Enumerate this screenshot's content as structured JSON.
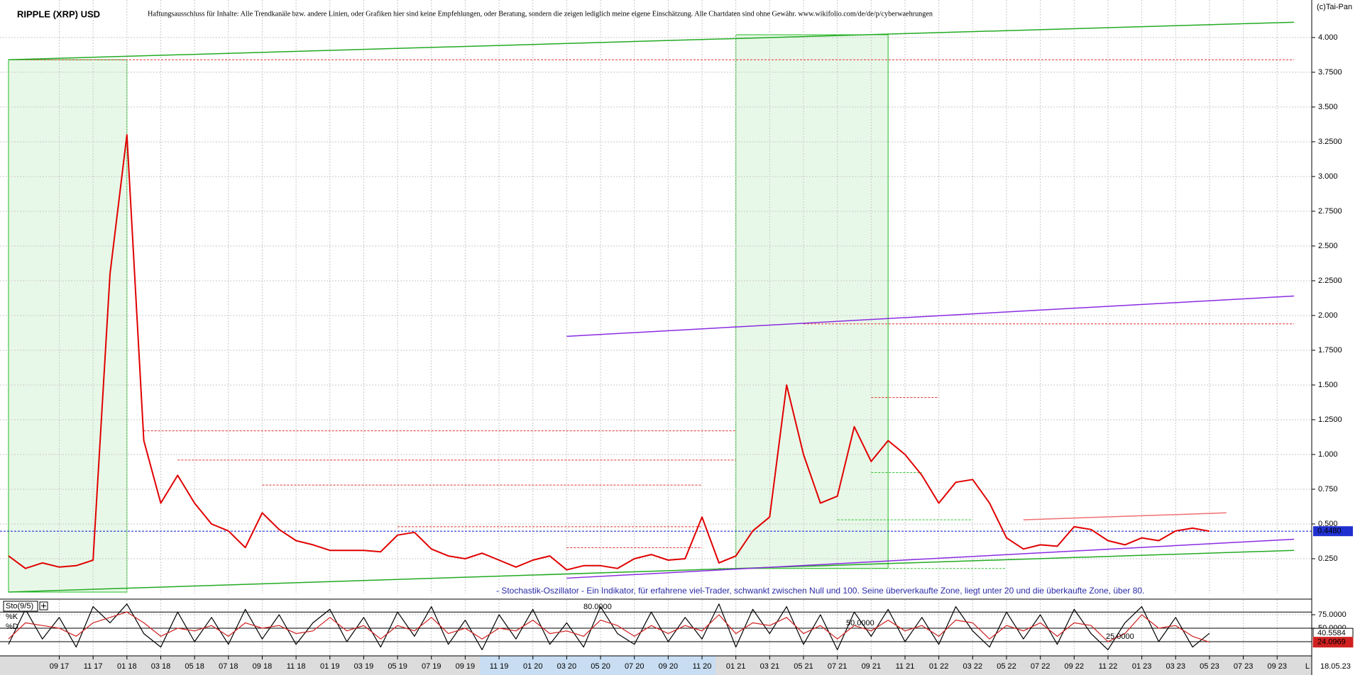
{
  "chart_data": [
    {
      "type": "line",
      "title": "RIPPLE (XRP) USD",
      "subtitle": "Haftungsausschluss für Inhalte: Alle Trendkanäle bzw. andere Linien, oder Grafiken hier sind keine Empfehlungen, oder Beratung, sondern die zeigen lediglich meine eigene Einschätzung. Alle Chartdaten sind ohne Gewähr.  www.wikifolio.com/de/de/p/cyberwaehrungen",
      "source": "(c)Tai-Pan",
      "date_label": "18.05.23",
      "scale_mode": "L",
      "x": [
        "06 17",
        "07 17",
        "08 17",
        "09 17",
        "10 17",
        "11 17",
        "12 17",
        "01 18",
        "02 18",
        "03 18",
        "04 18",
        "05 18",
        "06 18",
        "07 18",
        "08 18",
        "09 18",
        "10 18",
        "11 18",
        "12 18",
        "01 19",
        "02 19",
        "03 19",
        "04 19",
        "05 19",
        "06 19",
        "07 19",
        "08 19",
        "09 19",
        "10 19",
        "11 19",
        "12 19",
        "01 20",
        "02 20",
        "03 20",
        "04 20",
        "05 20",
        "06 20",
        "07 20",
        "08 20",
        "09 20",
        "10 20",
        "11 20",
        "12 20",
        "01 21",
        "02 21",
        "03 21",
        "04 21",
        "05 21",
        "06 21",
        "07 21",
        "08 21",
        "09 21",
        "10 21",
        "11 21",
        "12 21",
        "01 22",
        "02 22",
        "03 22",
        "04 22",
        "05 22",
        "06 22",
        "07 22",
        "08 22",
        "09 22",
        "10 22",
        "11 22",
        "12 22",
        "01 23",
        "02 23",
        "03 23",
        "04 23",
        "05 23",
        "06 23",
        "07 23",
        "08 23",
        "09 23",
        "10 23"
      ],
      "values": [
        0.27,
        0.18,
        0.22,
        0.19,
        0.2,
        0.24,
        2.3,
        3.3,
        1.1,
        0.65,
        0.85,
        0.65,
        0.5,
        0.45,
        0.33,
        0.58,
        0.46,
        0.38,
        0.35,
        0.31,
        0.31,
        0.31,
        0.3,
        0.42,
        0.44,
        0.32,
        0.27,
        0.25,
        0.29,
        0.24,
        0.19,
        0.24,
        0.27,
        0.17,
        0.2,
        0.2,
        0.18,
        0.25,
        0.28,
        0.24,
        0.25,
        0.55,
        0.22,
        0.27,
        0.45,
        0.55,
        1.5,
        1.0,
        0.65,
        0.7,
        1.2,
        0.95,
        1.1,
        1.0,
        0.85,
        0.65,
        0.8,
        0.82,
        0.65,
        0.4,
        0.32,
        0.35,
        0.34,
        0.48,
        0.46,
        0.38,
        0.35,
        0.4,
        0.38,
        0.45,
        0.47,
        0.448,
        null,
        null,
        null,
        null,
        null
      ],
      "color": "#e00000",
      "current": {
        "value": 0.448,
        "label": "0.4480",
        "color": "#2030d0"
      },
      "ylim": [
        0,
        4.27
      ],
      "yticks": [
        {
          "value": 0.25,
          "label": "0.250"
        },
        {
          "value": 0.5,
          "label": "0.500"
        },
        {
          "value": 0.75,
          "label": "0.750"
        },
        {
          "value": 1,
          "label": "1.000"
        },
        {
          "value": 1.25,
          "label": "1.2500"
        },
        {
          "value": 1.5,
          "label": "1.500"
        },
        {
          "value": 1.75,
          "label": "1.7500"
        },
        {
          "value": 2,
          "label": "2.000"
        },
        {
          "value": 2.25,
          "label": "2.2500"
        },
        {
          "value": 2.5,
          "label": "2.500"
        },
        {
          "value": 2.75,
          "label": "2.7500"
        },
        {
          "value": 3,
          "label": "3.000"
        },
        {
          "value": 3.25,
          "label": "3.2500"
        },
        {
          "value": 3.5,
          "label": "3.500"
        },
        {
          "value": 3.75,
          "label": "3.7500"
        },
        {
          "value": 4,
          "label": "4.000"
        }
      ],
      "xticks": [
        "09 17",
        "11 17",
        "01 18",
        "03 18",
        "05 18",
        "07 18",
        "09 18",
        "11 18",
        "01 19",
        "03 19",
        "05 19",
        "07 19",
        "09 19",
        "11 19",
        "01 20",
        "03 20",
        "05 20",
        "07 20",
        "09 20",
        "11 20",
        "01 21",
        "03 21",
        "05 21",
        "07 21",
        "09 21",
        "11 21",
        "01 22",
        "03 22",
        "05 22",
        "07 22",
        "09 22",
        "11 22",
        "01 23",
        "03 23",
        "05 23",
        "07 23",
        "09 23"
      ],
      "grid": true,
      "zones": [
        {
          "from": "06 17",
          "to": "01 18",
          "low": 0.01,
          "high": 3.84,
          "color": "#22bb22"
        },
        {
          "from": "01 21",
          "to": "10 21",
          "low": 0.18,
          "high": 4.02,
          "color": "#22bb22"
        }
      ],
      "levels": [
        {
          "value": 3.84,
          "from": "06 17",
          "to": "10 23",
          "color": "#e03030"
        },
        {
          "value": 1.94,
          "from": "05 21",
          "to": "10 23",
          "color": "#e03030"
        },
        {
          "value": 1.17,
          "from": "02 18",
          "to": "01 21",
          "color": "#e03030"
        },
        {
          "value": 0.96,
          "from": "04 18",
          "to": "01 21",
          "color": "#e03030"
        },
        {
          "value": 0.78,
          "from": "09 18",
          "to": "11 20",
          "color": "#e03030"
        },
        {
          "value": 1.41,
          "from": "09 21",
          "to": "01 22",
          "color": "#e03030"
        },
        {
          "value": 0.48,
          "from": "05 19",
          "to": "11 20",
          "color": "#e03030"
        },
        {
          "value": 0.33,
          "from": "03 20",
          "to": "11 20",
          "color": "#e03030"
        },
        {
          "value": 0.87,
          "from": "09 21",
          "to": "12 21",
          "color": "#30c030"
        },
        {
          "value": 0.53,
          "from": "07 21",
          "to": "03 22",
          "color": "#30c030"
        },
        {
          "value": 0.18,
          "from": "12 20",
          "to": "05 22",
          "color": "#30c030"
        }
      ],
      "trendlines": [
        {
          "from": [
            "06 17",
            3.84
          ],
          "to": [
            "10 23",
            4.11
          ],
          "color": "#22aa22"
        },
        {
          "from": [
            "06 17",
            0.01
          ],
          "to": [
            "10 23",
            0.31
          ],
          "color": "#22aa22"
        },
        {
          "from": [
            "03 20",
            1.85
          ],
          "to": [
            "10 23",
            2.14
          ],
          "color": "#8a2be2"
        },
        {
          "from": [
            "03 20",
            0.11
          ],
          "to": [
            "10 23",
            0.39
          ],
          "color": "#8a2be2"
        },
        {
          "from": [
            "06 22",
            0.53
          ],
          "to": [
            "06 23",
            0.58
          ],
          "color": "#f07070"
        }
      ]
    },
    {
      "type": "line",
      "title": "Sto(9/5)",
      "description": "- Stochastik-Oszillator - Ein Indikator, für erfahrene viel-Trader, schwankt zwischen Null und 100. Seine überverkaufte Zone, liegt unter 20 und die überkaufte Zone, über 80.",
      "x": [
        "06 17",
        "07 17",
        "08 17",
        "09 17",
        "10 17",
        "11 17",
        "12 17",
        "01 18",
        "02 18",
        "03 18",
        "04 18",
        "05 18",
        "06 18",
        "07 18",
        "08 18",
        "09 18",
        "10 18",
        "11 18",
        "12 18",
        "01 19",
        "02 19",
        "03 19",
        "04 19",
        "05 19",
        "06 19",
        "07 19",
        "08 19",
        "09 19",
        "10 19",
        "11 19",
        "12 19",
        "01 20",
        "02 20",
        "03 20",
        "04 20",
        "05 20",
        "06 20",
        "07 20",
        "08 20",
        "09 20",
        "10 20",
        "11 20",
        "12 20",
        "01 21",
        "02 21",
        "03 21",
        "04 21",
        "05 21",
        "06 21",
        "07 21",
        "08 21",
        "09 21",
        "10 21",
        "11 21",
        "12 21",
        "01 22",
        "02 22",
        "03 22",
        "04 22",
        "05 22",
        "06 22",
        "07 22",
        "08 22",
        "09 22",
        "10 22",
        "11 22",
        "12 22",
        "01 23",
        "02 23",
        "03 23",
        "04 23",
        "05 23",
        "06 23",
        "07 23",
        "08 23",
        "09 23",
        "10 23"
      ],
      "series": [
        {
          "name": "%K",
          "color": "#000000",
          "values": [
            20,
            85,
            30,
            70,
            15,
            90,
            60,
            95,
            40,
            15,
            80,
            25,
            70,
            20,
            85,
            30,
            75,
            20,
            60,
            85,
            25,
            70,
            15,
            80,
            35,
            90,
            20,
            65,
            10,
            75,
            30,
            85,
            20,
            60,
            15,
            90,
            40,
            20,
            80,
            25,
            70,
            30,
            95,
            15,
            85,
            40,
            90,
            20,
            75,
            10,
            80,
            35,
            85,
            25,
            70,
            20,
            90,
            45,
            15,
            80,
            30,
            75,
            20,
            85,
            40,
            10,
            60,
            90,
            25,
            70,
            15,
            40.5584,
            null,
            null,
            null,
            null,
            null
          ]
        },
        {
          "name": "%D",
          "color": "#d02020",
          "values": [
            30,
            60,
            55,
            50,
            35,
            60,
            70,
            80,
            60,
            35,
            50,
            45,
            55,
            35,
            60,
            50,
            55,
            40,
            45,
            70,
            45,
            55,
            30,
            55,
            45,
            70,
            40,
            50,
            30,
            50,
            45,
            65,
            40,
            45,
            35,
            65,
            55,
            35,
            55,
            40,
            55,
            45,
            75,
            40,
            60,
            55,
            70,
            40,
            55,
            30,
            55,
            45,
            65,
            45,
            55,
            35,
            65,
            60,
            30,
            55,
            45,
            60,
            35,
            60,
            55,
            25,
            40,
            75,
            50,
            55,
            35,
            24.0969,
            null,
            null,
            null,
            null,
            null
          ]
        }
      ],
      "ylim": [
        0,
        100
      ],
      "yticks": [
        {
          "value": 75,
          "label": "75.0000"
        },
        {
          "value": 50,
          "label": "50.0000"
        }
      ],
      "level_labels": [
        {
          "value": 80,
          "label": "80.0000"
        },
        {
          "value": 50,
          "label": "50.0000"
        },
        {
          "value": 25,
          "label": "25.0000"
        }
      ]
    }
  ]
}
